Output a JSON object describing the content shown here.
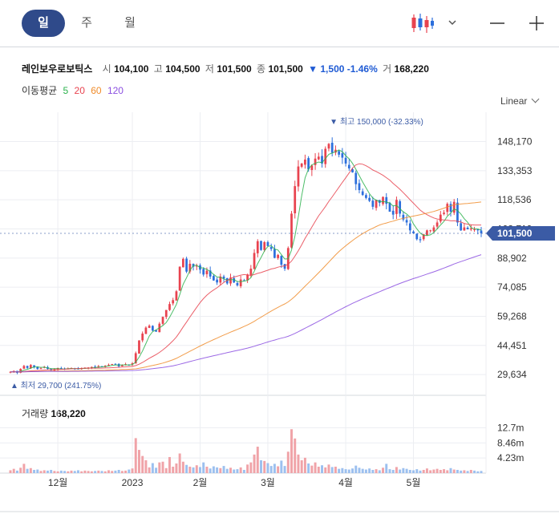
{
  "tabs": [
    {
      "label": "일",
      "active": true
    },
    {
      "label": "주",
      "active": false
    },
    {
      "label": "월",
      "active": false
    }
  ],
  "toolbar": {
    "chart_type_icon": "candlestick-icon",
    "dropdown_icon": "chevron-down-icon",
    "zoom_out_icon": "minus-icon",
    "zoom_in_icon": "plus-icon"
  },
  "stock": {
    "name": "레인보우로보틱스",
    "open_label": "시",
    "open": "104,100",
    "high_label": "고",
    "high": "104,500",
    "low_label": "저",
    "low": "101,500",
    "close_label": "종",
    "close": "101,500",
    "change": "▼ 1,500 -1.46%",
    "volume_label": "거",
    "volume": "168,220"
  },
  "moving_average": {
    "label": "이동평균",
    "periods": [
      {
        "label": "5",
        "color": "#2bb24c"
      },
      {
        "label": "20",
        "color": "#e8434f"
      },
      {
        "label": "60",
        "color": "#f08c2b"
      },
      {
        "label": "120",
        "color": "#8b4fe0"
      }
    ]
  },
  "scale_button": {
    "label": "Linear"
  },
  "volume_panel": {
    "label": "거래량",
    "value": "168,220"
  },
  "colors": {
    "up": "#e8434f",
    "down": "#2c6fdc",
    "accent": "#3b5ba5",
    "grid": "#eceef2"
  },
  "chart_data": {
    "type": "candlestick",
    "price_axis": {
      "ticks": [
        "148,170",
        "133,353",
        "118,536",
        "103,719",
        "88,902",
        "74,085",
        "59,268",
        "44,451",
        "29,634"
      ],
      "tick_values": [
        148170,
        133353,
        118536,
        103719,
        88902,
        74085,
        59268,
        44451,
        29634
      ],
      "range": [
        26000,
        159000
      ]
    },
    "current_price": {
      "label": "101,500",
      "value": 101500
    },
    "high_marker": {
      "text": "▼ 최고 150,000 (-32.33%)",
      "value": 150000,
      "index": 95
    },
    "low_marker": {
      "text": "▲ 최저 29,700 (241.75%)",
      "value": 29700,
      "index": 0
    },
    "x_labels": [
      {
        "label": "12월",
        "index": 14
      },
      {
        "label": "2023",
        "index": 36
      },
      {
        "label": "2월",
        "index": 56
      },
      {
        "label": "3월",
        "index": 76
      },
      {
        "label": "4월",
        "index": 99
      },
      {
        "label": "5월",
        "index": 119
      }
    ],
    "volume_axis": {
      "ticks": [
        "12.7m",
        "8.46m",
        "4.23m"
      ],
      "tick_values": [
        12.7,
        8.46,
        4.23
      ],
      "range": [
        0,
        15.5
      ]
    },
    "closes": [
      31000,
      31500,
      30500,
      32500,
      34000,
      33000,
      34500,
      33500,
      32500,
      33000,
      33500,
      32500,
      31800,
      32300,
      33000,
      32800,
      32300,
      32700,
      32900,
      32600,
      32500,
      32800,
      33000,
      33200,
      33500,
      33400,
      33900,
      33600,
      34200,
      34600,
      35000,
      34800,
      33800,
      34400,
      34900,
      34700,
      35400,
      40500,
      47000,
      50500,
      53500,
      54500,
      52000,
      51500,
      55500,
      59000,
      62500,
      65500,
      67500,
      72000,
      84500,
      88500,
      82000,
      86000,
      84500,
      85000,
      83000,
      80500,
      82500,
      79500,
      77500,
      76500,
      79500,
      78500,
      76000,
      79000,
      76500,
      75000,
      78000,
      77500,
      80500,
      83500,
      91500,
      97500,
      93000,
      97000,
      95000,
      93500,
      89000,
      90500,
      85500,
      83500,
      94000,
      111500,
      125500,
      135500,
      137000,
      139000,
      134000,
      136000,
      139500,
      140500,
      137000,
      144500,
      147000,
      142500,
      144000,
      141500,
      140000,
      137000,
      134500,
      132500,
      126500,
      123500,
      121000,
      119500,
      118000,
      115000,
      118500,
      117000,
      120000,
      116500,
      112500,
      111000,
      118500,
      111500,
      108500,
      107000,
      103000,
      101500,
      98500,
      98000,
      101000,
      103000,
      103000,
      104500,
      107000,
      111000,
      112000,
      116500,
      112500,
      117500,
      107000,
      103000,
      104500,
      103500,
      104000,
      103500,
      103000,
      101500
    ],
    "volumes": [
      0.8,
      1.2,
      0.7,
      1.5,
      2.6,
      1.2,
      1.4,
      0.9,
      1.0,
      0.6,
      0.8,
      0.7,
      0.9,
      0.6,
      0.5,
      0.7,
      0.6,
      0.5,
      0.7,
      0.6,
      0.8,
      0.5,
      0.7,
      0.6,
      0.5,
      0.6,
      0.7,
      0.6,
      0.5,
      0.8,
      0.6,
      0.7,
      0.9,
      0.6,
      0.7,
      1.0,
      1.3,
      9.8,
      6.5,
      4.8,
      3.6,
      1.6,
      2.8,
      1.5,
      3.0,
      3.2,
      1.4,
      4.5,
      1.8,
      2.7,
      5.5,
      3.2,
      2.3,
      1.8,
      1.6,
      2.2,
      1.7,
      3.0,
      1.8,
      1.3,
      1.9,
      1.6,
      1.4,
      2.0,
      1.2,
      1.5,
      1.0,
      1.1,
      1.6,
      0.9,
      2.4,
      3.0,
      5.2,
      7.4,
      3.6,
      3.4,
      2.8,
      2.0,
      2.6,
      1.9,
      3.5,
      2.0,
      6.0,
      12.3,
      9.7,
      5.2,
      3.6,
      4.3,
      2.7,
      2.1,
      3.0,
      1.8,
      2.2,
      1.6,
      2.4,
      1.7,
      1.8,
      1.2,
      1.4,
      1.1,
      1.0,
      1.3,
      2.1,
      1.5,
      1.2,
      1.0,
      1.3,
      0.9,
      1.1,
      0.8,
      1.5,
      2.6,
      1.1,
      0.9,
      1.7,
      1.0,
      1.4,
      1.2,
      0.9,
      0.8,
      1.1,
      0.7,
      0.9,
      1.3,
      0.8,
      1.0,
      1.2,
      0.9,
      1.1,
      0.8,
      1.4,
      1.0,
      0.9,
      0.7,
      0.8,
      0.6,
      0.9,
      0.7,
      0.5,
      0.6
    ]
  }
}
